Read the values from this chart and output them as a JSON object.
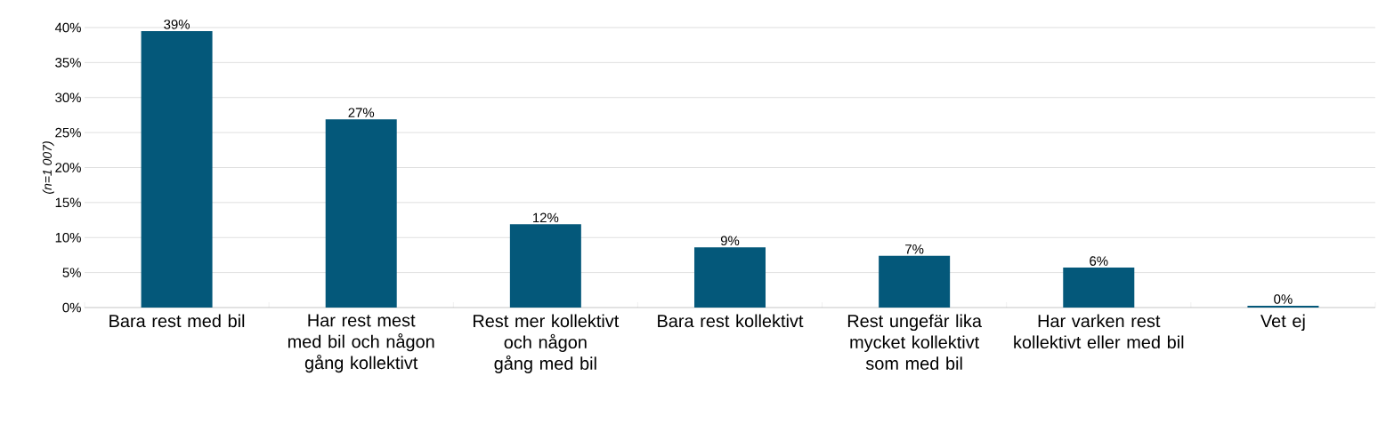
{
  "chart_data": {
    "type": "bar",
    "ylabel": "(n=1 007)",
    "categories": [
      "Bara rest med bil",
      "Har rest mest med bil och någon gång kollektivt",
      "Rest mer kollektivt och någon gång med bil",
      "Bara rest kollektivt",
      "Rest ungefär lika mycket kollektivt som med bil",
      "Har varken rest kollektivt eller med bil",
      "Vet ej"
    ],
    "values": [
      39.5,
      26.9,
      11.9,
      8.6,
      7.4,
      5.7,
      0.25
    ],
    "value_labels": [
      "39%",
      "27%",
      "12%",
      "9%",
      "7%",
      "6%",
      "0%"
    ],
    "color": "#04587a",
    "ylim": [
      0,
      40
    ],
    "yticks": [
      {
        "value": 0,
        "label": "0%"
      },
      {
        "value": 5,
        "label": "5%"
      },
      {
        "value": 10,
        "label": "10%"
      },
      {
        "value": 15,
        "label": "15%"
      },
      {
        "value": 20,
        "label": "20%"
      },
      {
        "value": 25,
        "label": "25%"
      },
      {
        "value": 30,
        "label": "30%"
      },
      {
        "value": 35,
        "label": "35%"
      },
      {
        "value": 40,
        "label": "40%"
      }
    ],
    "grid": "y"
  }
}
